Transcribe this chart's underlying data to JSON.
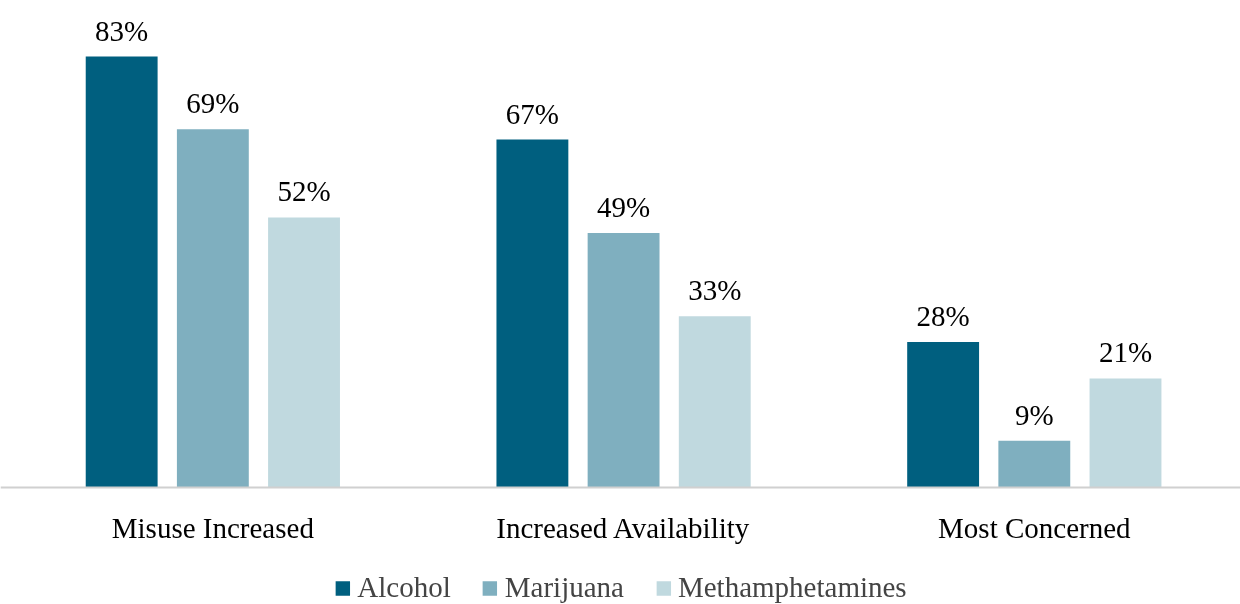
{
  "chart_data": {
    "type": "bar",
    "categories": [
      "Misuse Increased",
      "Increased Availability",
      "Most Concerned"
    ],
    "series": [
      {
        "name": "Alcohol",
        "color": "#005f7f",
        "values": [
          83,
          67,
          28
        ],
        "value_labels": [
          "83%",
          "67%",
          "28%"
        ]
      },
      {
        "name": "Marijuana",
        "color": "#7fafbf",
        "values": [
          69,
          49,
          9
        ],
        "value_labels": [
          "69%",
          "49%",
          "9%"
        ]
      },
      {
        "name": "Methamphetamines",
        "color": "#c0d9df",
        "values": [
          52,
          33,
          21
        ],
        "value_labels": [
          "52%",
          "33%",
          "21%"
        ]
      }
    ],
    "legend": "bottom",
    "grid": false
  }
}
